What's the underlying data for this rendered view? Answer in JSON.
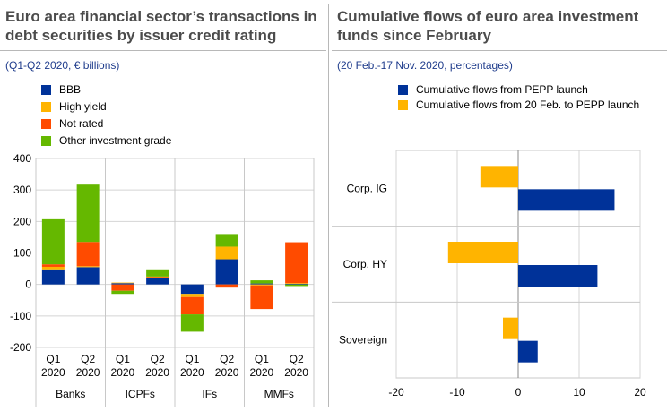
{
  "left": {
    "title_line1": "Euro area financial sector’s transactions in",
    "title_line2": "debt securities by issuer credit rating",
    "subtitle": "(Q1-Q2 2020, € billions)"
  },
  "right": {
    "title_line1": "Cumulative flows of euro area investment",
    "title_line2": "funds since February",
    "subtitle": "(20 Feb.-17 Nov. 2020, percentages)"
  },
  "colors": {
    "BBB": "#003299",
    "High yield": "#ffb400",
    "Not rated": "#ff4b00",
    "Other investment grade": "#65b800"
  },
  "chart_data": [
    {
      "type": "bar",
      "stacked": true,
      "orientation": "vertical",
      "x_tick_labels": [
        [
          "Q1",
          "2020"
        ],
        [
          "Q2",
          "2020"
        ],
        [
          "Q1",
          "2020"
        ],
        [
          "Q2",
          "2020"
        ],
        [
          "Q1",
          "2020"
        ],
        [
          "Q2",
          "2020"
        ],
        [
          "Q1",
          "2020"
        ],
        [
          "Q2",
          "2020"
        ]
      ],
      "groups": [
        "Banks",
        "ICPFs",
        "IFs",
        "MMFs"
      ],
      "ylim": [
        -200,
        400
      ],
      "yticks": [
        -200,
        -100,
        0,
        100,
        200,
        300,
        400
      ],
      "grid": true,
      "legend_position": "top-left",
      "series": [
        {
          "name": "BBB",
          "color": "#003299",
          "values": [
            48,
            55,
            4,
            20,
            -30,
            80,
            3,
            2
          ]
        },
        {
          "name": "High yield",
          "color": "#ffb400",
          "values": [
            8,
            3,
            2,
            3,
            -10,
            40,
            -3,
            2
          ]
        },
        {
          "name": "Not rated",
          "color": "#ff4b00",
          "values": [
            8,
            77,
            -20,
            2,
            -55,
            -10,
            -75,
            130
          ]
        },
        {
          "name": "Other investment grade",
          "color": "#65b800",
          "values": [
            143,
            182,
            -10,
            23,
            -55,
            40,
            10,
            -5
          ]
        }
      ]
    },
    {
      "type": "bar",
      "orientation": "horizontal",
      "categories": [
        "Corp. IG",
        "Corp. HY",
        "Sovereign"
      ],
      "xlim": [
        -20,
        20
      ],
      "xticks": [
        -20,
        -10,
        0,
        10,
        20
      ],
      "grid": true,
      "legend_position": "top",
      "series": [
        {
          "name": "Cumulative flows from PEPP launch",
          "color": "#003299",
          "values": [
            15.8,
            13.0,
            3.2
          ]
        },
        {
          "name": "Cumulative flows from 20 Feb. to PEPP launch",
          "color": "#ffb400",
          "values": [
            -6.2,
            -11.5,
            -2.5
          ]
        }
      ]
    }
  ]
}
